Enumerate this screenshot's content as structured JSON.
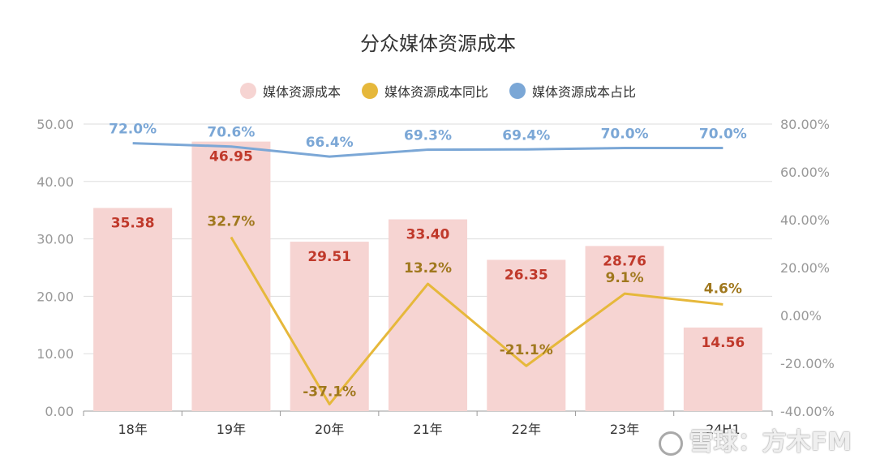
{
  "chart_data": {
    "type": "bar",
    "title": "分众媒体资源成本",
    "categories": [
      "18年",
      "19年",
      "20年",
      "21年",
      "22年",
      "23年",
      "24H1"
    ],
    "series": [
      {
        "name": "媒体资源成本",
        "type": "bar",
        "axis": "left",
        "values": [
          35.38,
          46.95,
          29.51,
          33.4,
          26.35,
          28.76,
          14.56
        ],
        "labels": [
          "35.38",
          "46.95",
          "29.51",
          "33.40",
          "26.35",
          "28.76",
          "14.56"
        ],
        "color": "#f6d4d2",
        "label_color": "#c0392b"
      },
      {
        "name": "媒体资源成本同比",
        "type": "line",
        "axis": "right",
        "values": [
          null,
          32.7,
          -37.1,
          13.2,
          -21.1,
          9.1,
          4.6
        ],
        "labels": [
          null,
          "32.7%",
          "-37.1%",
          "13.2%",
          "-21.1%",
          "9.1%",
          "4.6%"
        ],
        "color": "#e6b83b",
        "label_color": "#a0781e"
      },
      {
        "name": "媒体资源成本占比",
        "type": "line",
        "axis": "right",
        "values": [
          72.0,
          70.6,
          66.4,
          69.3,
          69.4,
          70.0,
          70.0
        ],
        "labels": [
          "72.0%",
          "70.6%",
          "66.4%",
          "69.3%",
          "69.4%",
          "70.0%",
          "70.0%"
        ],
        "color": "#7ba7d6",
        "label_color": "#7ba7d6"
      }
    ],
    "y_left": {
      "min": 0,
      "max": 50,
      "ticks": [
        "0.00",
        "10.00",
        "20.00",
        "30.00",
        "40.00",
        "50.00"
      ]
    },
    "y_right": {
      "min": -40,
      "max": 80,
      "ticks": [
        "-40.00%",
        "-20.00%",
        "0.00%",
        "20.00%",
        "40.00%",
        "60.00%",
        "80.00%"
      ]
    },
    "grid": true,
    "legend_position": "top-center"
  },
  "watermark": {
    "text": "雪球：方木FM"
  }
}
